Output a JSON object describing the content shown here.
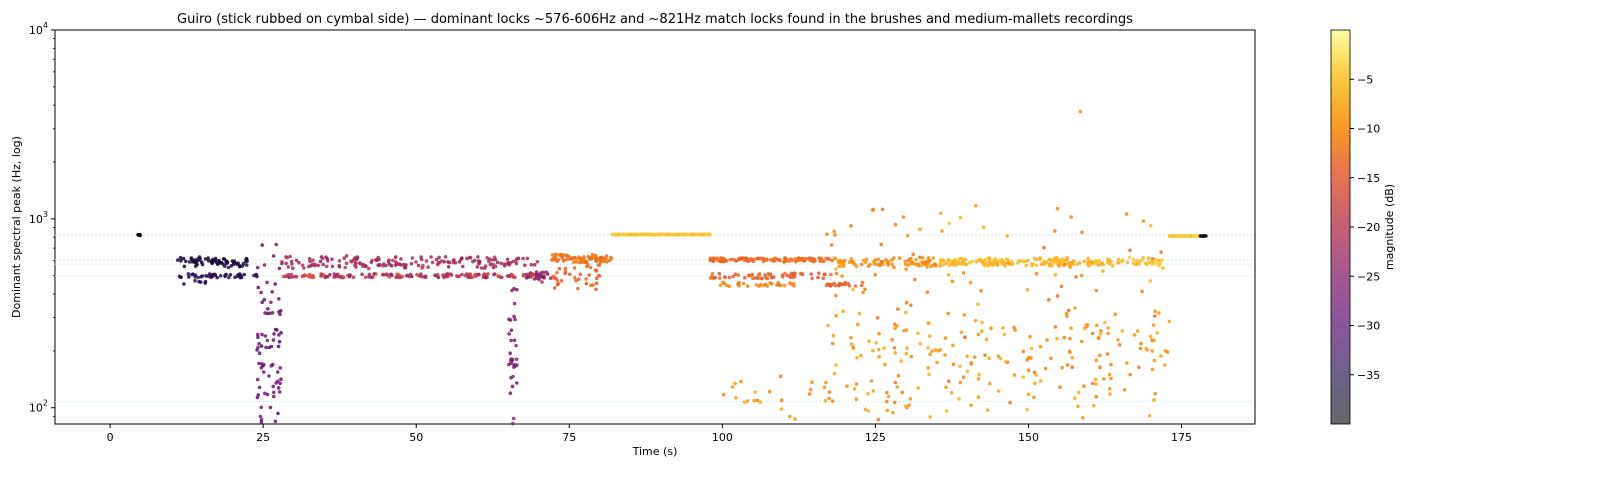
{
  "chart_data": {
    "type": "scatter",
    "title": "Guiro (stick rubbed on cymbal side) — dominant locks ~576-606Hz and ~821Hz match locks found in the brushes and medium-mallets recordings",
    "xlabel": "Time (s)",
    "ylabel": "Dominant spectral peak (Hz, log)",
    "xlim": [
      -9,
      187
    ],
    "ylim": [
      82,
      10000
    ],
    "yscale": "log",
    "x_ticks": [
      0,
      25,
      50,
      75,
      100,
      125,
      150,
      175
    ],
    "x_tick_labels": [
      "0",
      "25",
      "50",
      "75",
      "100",
      "125",
      "150",
      "175"
    ],
    "y_ticks": [
      100,
      1000,
      10000
    ],
    "y_tick_base": "10",
    "y_tick_exponents": [
      "2",
      "3",
      "4"
    ],
    "reference_lines_hz": [
      108,
      500,
      576,
      606,
      821
    ],
    "reference_line_color": "#cfeee0",
    "grid": false,
    "colorbar": {
      "label": "magnitude (dB)",
      "colormap": "inferno",
      "range": [
        -40,
        0
      ],
      "ticks": [
        -35,
        -30,
        -25,
        -20,
        -15,
        -10,
        -5
      ],
      "tick_labels": [
        "−35",
        "−30",
        "−25",
        "−20",
        "−15",
        "−10",
        "−5"
      ]
    },
    "series": [
      {
        "clusters": [
          {
            "x": [
              4.5,
              5
            ],
            "hz": [
              821,
              821
            ],
            "db": [
              -38,
              -38
            ],
            "spread": 0.005,
            "n": 8
          },
          {
            "x": [
              11,
              22.5
            ],
            "hz": [
              576,
              606
            ],
            "db": [
              -37,
              -34
            ],
            "spread": 0.04,
            "n": 70
          },
          {
            "x": [
              11,
              24
            ],
            "hz": [
              500,
              500
            ],
            "db": [
              -36,
              -33
            ],
            "spread": 0.02,
            "n": 40
          },
          {
            "x": [
              12,
              16
            ],
            "hz": [
              460,
              460
            ],
            "db": [
              -35,
              -35
            ],
            "spread": 0.02,
            "n": 6
          },
          {
            "x": [
              24,
              28
            ],
            "hz": [
              100,
              450
            ],
            "db": [
              -30,
              -26
            ],
            "spread": 0.5,
            "n": 80
          },
          {
            "x": [
              28,
              70
            ],
            "hz": [
              576,
              606
            ],
            "db": [
              -20,
              -24
            ],
            "spread": 0.05,
            "n": 170
          },
          {
            "x": [
              28,
              70
            ],
            "hz": [
              500,
              500
            ],
            "db": [
              -16,
              -24
            ],
            "spread": 0.02,
            "n": 150
          },
          {
            "x": [
              65,
              66.5
            ],
            "hz": [
              95,
              320
            ],
            "db": [
              -27,
              -25
            ],
            "spread": 0.5,
            "n": 35
          },
          {
            "x": [
              68,
              72
            ],
            "hz": [
              480,
              520
            ],
            "db": [
              -26,
              -22
            ],
            "spread": 0.04,
            "n": 25
          },
          {
            "x": [
              72,
              82
            ],
            "hz": [
              600,
              630
            ],
            "db": [
              -13,
              -11
            ],
            "spread": 0.03,
            "n": 80
          },
          {
            "x": [
              72,
              80
            ],
            "hz": [
              450,
              560
            ],
            "db": [
              -15,
              -13
            ],
            "spread": 0.08,
            "n": 40
          },
          {
            "x": [
              82,
              98
            ],
            "hz": [
              826,
              826
            ],
            "db": [
              -5,
              -5
            ],
            "spread": 0.003,
            "n": 180
          },
          {
            "x": [
              98,
              118
            ],
            "hz": [
              606,
              606
            ],
            "db": [
              -14,
              -12
            ],
            "spread": 0.02,
            "n": 120
          },
          {
            "x": [
              98,
              118
            ],
            "hz": [
              500,
              500
            ],
            "db": [
              -15,
              -13
            ],
            "spread": 0.03,
            "n": 60
          },
          {
            "x": [
              99,
              112
            ],
            "hz": [
              450,
              450
            ],
            "db": [
              -12,
              -10
            ],
            "spread": 0.02,
            "n": 30
          },
          {
            "x": [
              117,
              123
            ],
            "hz": [
              450,
              450
            ],
            "db": [
              -14,
              -13
            ],
            "spread": 0.02,
            "n": 25
          },
          {
            "x": [
              118,
              135
            ],
            "hz": [
              576,
              600
            ],
            "db": [
              -11,
              -9
            ],
            "spread": 0.04,
            "n": 80
          },
          {
            "x": [
              135,
              165
            ],
            "hz": [
              576,
              606
            ],
            "db": [
              -7,
              -6
            ],
            "spread": 0.03,
            "n": 180
          },
          {
            "x": [
              165,
              172
            ],
            "hz": [
              570,
              620
            ],
            "db": [
              -6,
              -5
            ],
            "spread": 0.03,
            "n": 30
          },
          {
            "x": [
              117,
              173
            ],
            "hz": [
              150,
              300
            ],
            "db": [
              -12,
              -7
            ],
            "spread": 0.15,
            "n": 150
          },
          {
            "x": [
              100,
              172
            ],
            "hz": [
              95,
              140
            ],
            "db": [
              -12,
              -7
            ],
            "spread": 0.15,
            "n": 90
          },
          {
            "x": [
              117,
              172
            ],
            "hz": [
              300,
              900
            ],
            "db": [
              -13,
              -6
            ],
            "spread": 0.3,
            "n": 90
          },
          {
            "x": [
              173,
              178
            ],
            "hz": [
              811,
              811
            ],
            "db": [
              -5,
              -5
            ],
            "spread": 0.003,
            "n": 50
          },
          {
            "x": [
              178,
              179
            ],
            "hz": [
              811,
              811
            ],
            "db": [
              -37,
              -37
            ],
            "spread": 0.003,
            "n": 6
          },
          {
            "x": [
              158.5,
              158.5
            ],
            "hz": [
              3700,
              3700
            ],
            "db": [
              -9,
              -9
            ],
            "spread": 0,
            "n": 1
          },
          {
            "x": [
              166,
              166
            ],
            "hz": [
              1060,
              1060
            ],
            "db": [
              -10,
              -10
            ],
            "spread": 0,
            "n": 1
          }
        ]
      }
    ]
  }
}
